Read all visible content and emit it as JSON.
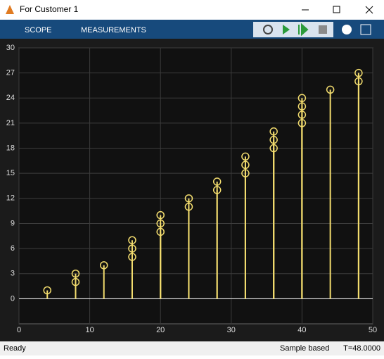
{
  "window": {
    "title": "For Customer 1"
  },
  "toolbar": {
    "tabs": [
      "SCOPE",
      "MEASUREMENTS"
    ]
  },
  "status": {
    "state": "Ready",
    "mode": "Sample based",
    "time": "T=48.0000"
  },
  "chart_data": {
    "type": "stem",
    "x": [
      4,
      8,
      8,
      12,
      16,
      16,
      16,
      20,
      20,
      20,
      24,
      24,
      28,
      28,
      32,
      32,
      32,
      36,
      36,
      36,
      40,
      40,
      40,
      40,
      44,
      48,
      48
    ],
    "values": [
      1,
      2,
      3,
      4,
      5,
      6,
      7,
      8,
      9,
      10,
      11,
      12,
      13,
      14,
      15,
      16,
      17,
      18,
      19,
      20,
      21,
      22,
      23,
      24,
      25,
      26,
      27
    ],
    "color": "#f2dc6e",
    "xlim": [
      0,
      50
    ],
    "xticks": [
      0,
      10,
      20,
      30,
      40,
      50
    ],
    "ylim": [
      -3,
      30
    ],
    "yticks": [
      0,
      3,
      6,
      9,
      12,
      15,
      18,
      21,
      24,
      27,
      30
    ],
    "grid": true
  }
}
